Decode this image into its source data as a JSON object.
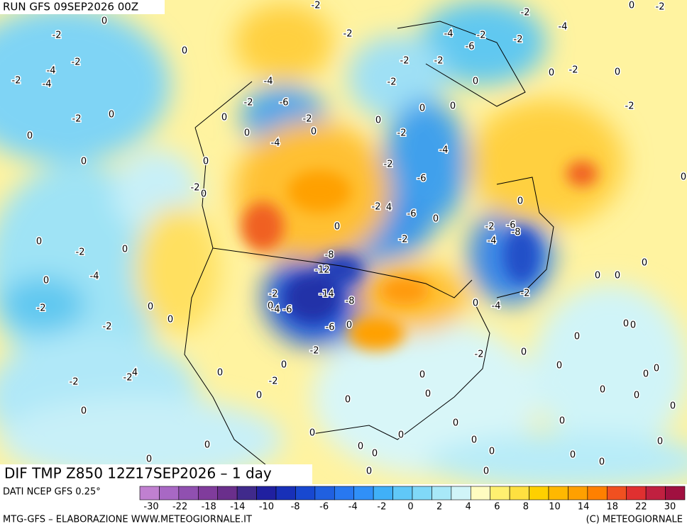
{
  "header": {
    "run": "RUN GFS 09SEP2026 00Z",
    "title": "DIF TMP Z850 12Z17SEP2026 – 1 day"
  },
  "contour_labels": [
    0,
    -2,
    -2,
    0,
    -2,
    -2,
    -2,
    -4,
    -2,
    -6,
    -2,
    -4,
    0,
    -2,
    -4,
    -2,
    -4,
    -2,
    -2,
    0,
    -2,
    0,
    -4,
    -2,
    0,
    -2,
    -6,
    0,
    -2,
    -2,
    0,
    0,
    0,
    -2,
    0,
    0,
    0,
    -4,
    -2,
    0,
    -4,
    0,
    -2,
    0,
    -6,
    -2,
    0,
    0,
    -2,
    4,
    -6,
    0,
    0,
    0,
    -2,
    -6,
    -8,
    0,
    -2,
    -4,
    -2,
    0,
    -8,
    -12,
    -4,
    0,
    0,
    0,
    0,
    -2,
    -14,
    -8,
    -2,
    -2,
    0,
    0,
    -4,
    -6,
    -4,
    0,
    0,
    -2,
    -6,
    0,
    0,
    0,
    0,
    -2,
    -2,
    0,
    0,
    0,
    0,
    0,
    0,
    -2,
    4,
    -2,
    0,
    -2,
    0,
    0,
    0,
    0,
    0,
    0,
    0,
    0,
    0,
    0,
    0,
    0,
    0,
    0,
    0,
    0,
    0,
    0,
    0,
    0,
    0,
    0
  ],
  "legend": {
    "source": "DATI NCEP GFS 0.25°",
    "colors": [
      "#c080d0",
      "#a868c4",
      "#9050b0",
      "#803c9c",
      "#6a2f8c",
      "#402a8c",
      "#2020a0",
      "#1830b8",
      "#1848d0",
      "#2060e0",
      "#2878f0",
      "#3090f8",
      "#40b0f8",
      "#60c8f8",
      "#80d8f8",
      "#a8e8f8",
      "#d0f4f8",
      "#fffcc0",
      "#fff070",
      "#ffe040",
      "#ffd000",
      "#ffb800",
      "#ffa000",
      "#ff8000",
      "#f05020",
      "#e03030",
      "#c02040",
      "#a01040"
    ],
    "ticks": [
      -30,
      -22,
      -18,
      -14,
      -10,
      -8,
      -6,
      -4,
      -2,
      0,
      2,
      4,
      6,
      8,
      10,
      14,
      18,
      22,
      30
    ]
  },
  "footer": {
    "left": "MTG-GFS – ELABORAZIONE WWW.METEOGIORNALE.IT",
    "right": "(C) METEOGIORNALE"
  }
}
